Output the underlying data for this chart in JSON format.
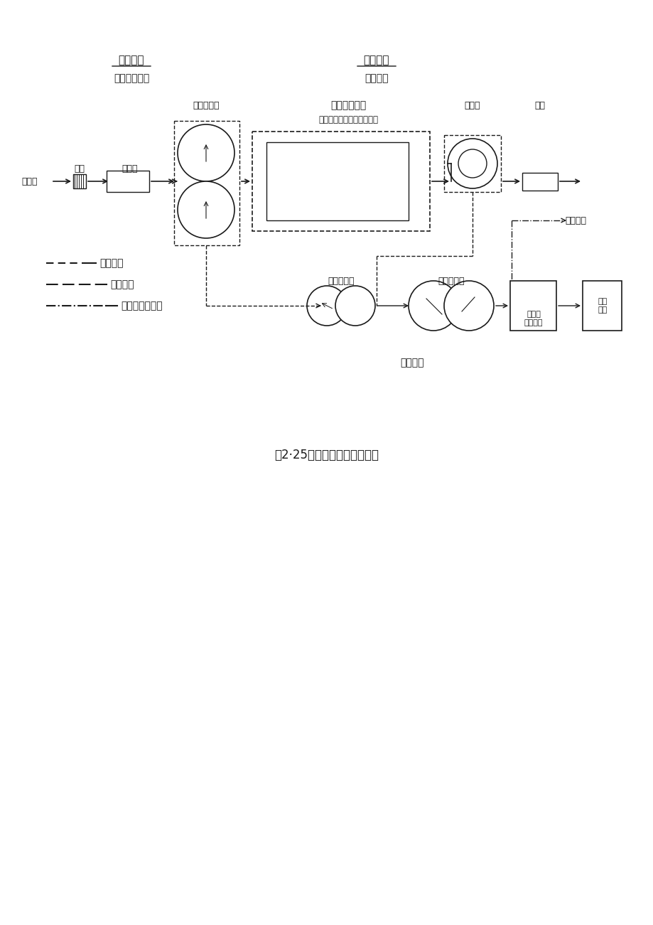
{
  "title": "图2·25城市污水处理典型流程",
  "bg_color": "#ffffff",
  "text_color": "#1a1a1a",
  "label_yiji": "一级处理",
  "label_yiji_sub": "（物理处理）",
  "label_erji": "二级处理",
  "label_erji_sub": "（生物处",
  "label_chucidi": "初次沉淀池",
  "label_shengwu": "生物处理设备",
  "label_shengwu_sub": "（活性污泥法或生物膜法）",
  "label_chendianci": "沉淀池",
  "label_xiaodu": "消毒",
  "label_zhaqi": "沼气利用",
  "label_nongsuochi": "污泥浓缩池",
  "label_xiaohuchi": "污泥消化池",
  "label_tuoshui": "脱水和\n干燥设备",
  "label_niliyong": "污泥\n利用",
  "label_nili": "污泥处理",
  "label_yuanwushui": "原污水",
  "label_geshe": "格栅",
  "label_cheshaochi": "沉砂池",
  "legend1": "污水流程",
  "legend2": "污泥流程",
  "legend3": "消化气（沼气）"
}
